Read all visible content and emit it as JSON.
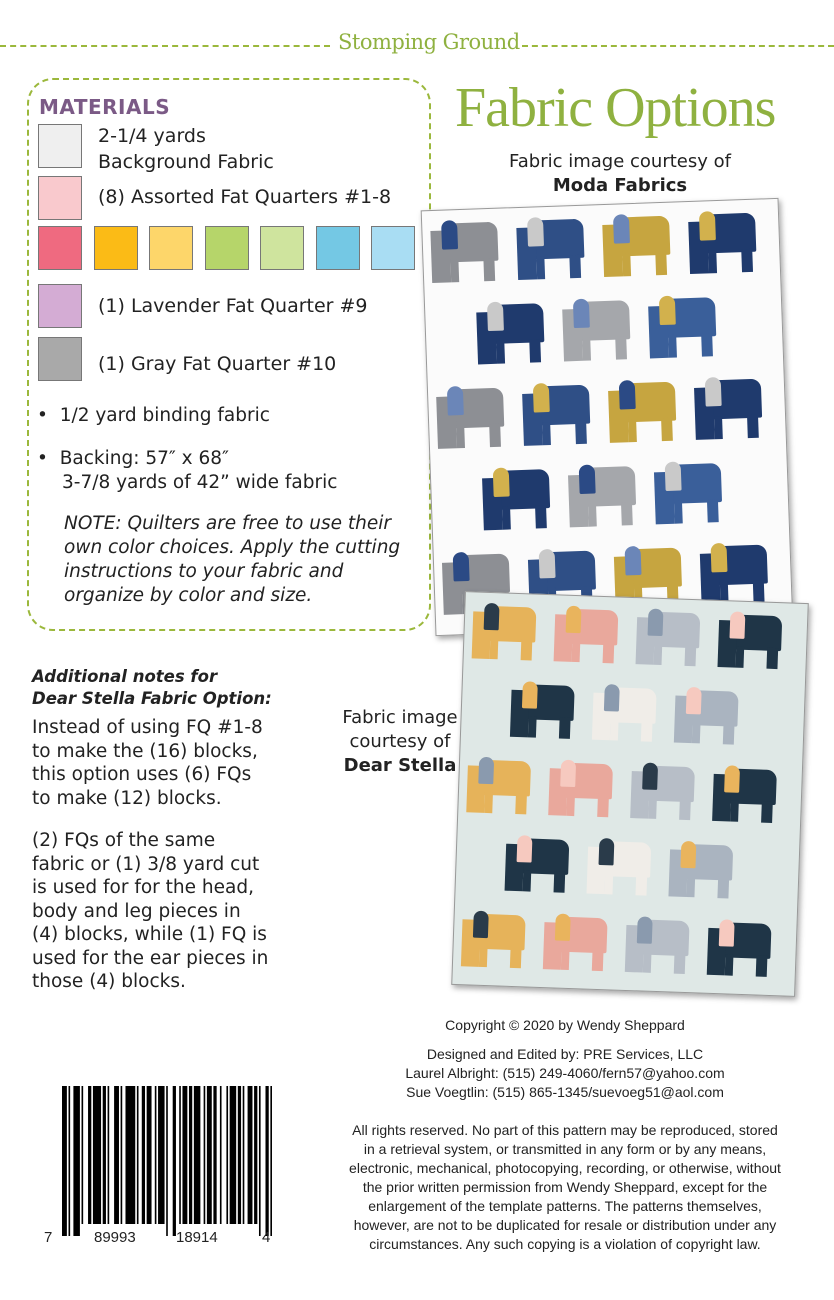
{
  "header": {
    "brand": "Stomping Ground"
  },
  "materials": {
    "title": "MATERIALS",
    "items": [
      {
        "text": "2-1/4 yards\nBackground Fabric",
        "line1": "2-1/4 yards",
        "line2": "Background Fabric",
        "color": "#efefef"
      },
      {
        "text": "(8) Assorted Fat Quarters #1-8",
        "color": "#f9c9cd"
      },
      {
        "text": "(1) Lavender Fat Quarter #9",
        "color": "#d4acd4"
      },
      {
        "text": "(1) Gray Fat Quarter #10",
        "color": "#a9a9a9"
      }
    ],
    "swatch_row": [
      "#ef6a80",
      "#fbbb16",
      "#fdd66a",
      "#b6d56a",
      "#cfe49e",
      "#74c8e4",
      "#a9ddf3"
    ],
    "bullets": [
      {
        "line1": "1/2 yard binding fabric"
      },
      {
        "line1": "Backing: 57″ x 68″",
        "line2": "3-7/8 yards of 42” wide fabric"
      }
    ],
    "note": [
      "NOTE: Quilters are free to use their",
      "own color choices. Apply the cutting",
      "instructions to your fabric and",
      "organize by color and size."
    ]
  },
  "fabric_options": {
    "title": "Fabric Options",
    "caption1": {
      "line1": "Fabric image courtesy of",
      "line2": "Moda Fabrics"
    },
    "caption2": {
      "line1": "Fabric image",
      "line2": "courtesy of",
      "line3": "Dear Stella"
    }
  },
  "additional_notes": {
    "heading1": "Additional notes for",
    "heading2": "Dear Stella Fabric Option:",
    "para1": [
      "Instead of using FQ #1-8",
      "to make the (16) blocks,",
      "this option uses (6) FQs",
      "to make (12) blocks."
    ],
    "para2": [
      "(2) FQs of the same",
      "fabric or (1) 3/8 yard cut",
      "is used for for the head,",
      "body and leg pieces in",
      "(4) blocks, while (1) FQ is",
      "used for the ear pieces in",
      "those (4) blocks."
    ]
  },
  "footer": {
    "copyright": "Copyright © 2020 by Wendy Sheppard",
    "credits": [
      "Designed and Edited by: PRE Services, LLC",
      "Laurel Albright: (515) 249-4060/fern57@yahoo.com",
      "Sue Voegtlin: (515) 865-1345/suevoeg51@aol.com"
    ],
    "rights": [
      "All rights reserved. No part of this pattern may be reproduced, stored",
      "in a retrieval system, or transmitted in any form or by any means,",
      "electronic, mechanical, photocopying, recording, or otherwise, without",
      "the prior written permission from Wendy Sheppard, except for the",
      "enlargement of the template patterns. The patterns themselves,",
      "however, are not to be duplicated for resale or distribution under any",
      "circumstances. Any such copying is a violation of copyright law."
    ],
    "barcode_digits": [
      "7",
      "89993",
      "18914",
      "4"
    ]
  },
  "colors": {
    "accent_green": "#8fb140",
    "materials_purple": "#7b5a86"
  }
}
